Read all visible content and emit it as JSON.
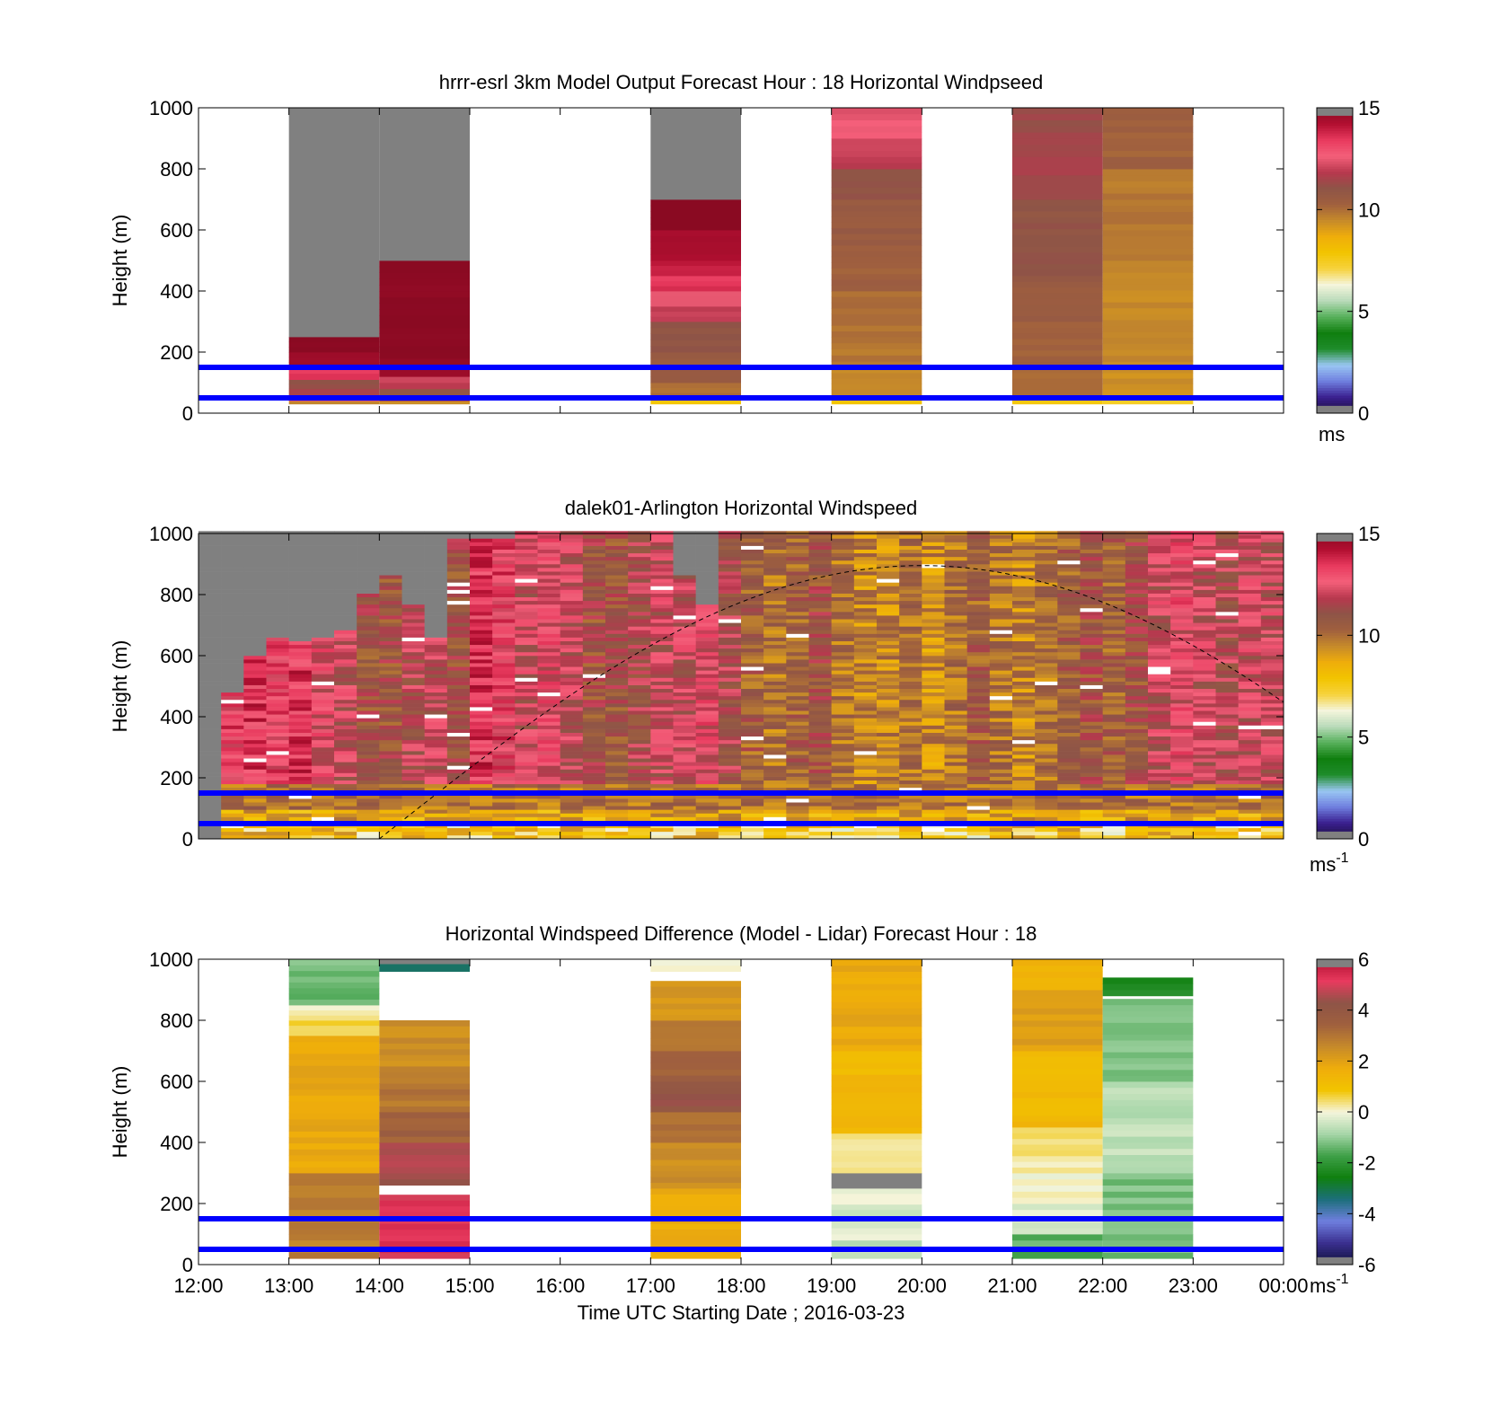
{
  "colors": {
    "ref_line": "#0000ff",
    "axis": "#000000",
    "missing": "#808080",
    "background": "#ffffff",
    "speed_colormap": [
      "#707070",
      "#1a0f3a",
      "#3a1f8f",
      "#6f7fdf",
      "#9ac7f2",
      "#1f8c2b",
      "#0f7f0f",
      "#57b05b",
      "#b9dbba",
      "#f5f5dc",
      "#f6d23c",
      "#f2c400",
      "#efad0b",
      "#c68a2a",
      "#a0603e",
      "#8e5447",
      "#b8384e",
      "#f4607a",
      "#e83a5e",
      "#b20f31",
      "#8a0a22",
      "#707070"
    ],
    "diff_colormap": [
      "#707070",
      "#10103a",
      "#3a2f8f",
      "#6f7fdf",
      "#1c6f7a",
      "#0f7f0f",
      "#3fa048",
      "#a7d6a9",
      "#f5f5dc",
      "#f2c400",
      "#efad0b",
      "#c68a2a",
      "#a0603e",
      "#8e5447",
      "#e83a5e",
      "#b20f31",
      "#707070"
    ]
  },
  "chart_data": [
    {
      "type": "heatmap",
      "title": "hrrr-esrl 3km Model Output   Forecast Hour : 18 Horizontal Windpseed",
      "xlabel": "",
      "ylabel": "Height (m)",
      "ylim": [
        0,
        1000
      ],
      "yticks": [
        "0",
        "200",
        "400",
        "600",
        "800",
        "1000"
      ],
      "xlim": [
        "12:00",
        "00:00"
      ],
      "reference_lines_m": [
        50,
        150
      ],
      "colorbar": {
        "ticks": [
          "0",
          "5",
          "10",
          "15"
        ],
        "range": [
          0,
          15
        ],
        "unit": "ms"
      },
      "columns": [
        {
          "start": "13:00",
          "end": "14:00",
          "bands": [
            [
              30,
              40,
              9.5
            ],
            [
              40,
              60,
              12.5
            ],
            [
              60,
              80,
              11.5
            ],
            [
              80,
              110,
              11
            ],
            [
              110,
              150,
              13.5
            ],
            [
              150,
              200,
              14.5
            ],
            [
              200,
              250,
              15
            ],
            [
              250,
              1000,
              "missing"
            ]
          ]
        },
        {
          "start": "14:00",
          "end": "15:00",
          "bands": [
            [
              30,
              40,
              9.5
            ],
            [
              40,
              60,
              11.5
            ],
            [
              60,
              80,
              11
            ],
            [
              80,
              120,
              12
            ],
            [
              120,
              160,
              14.5
            ],
            [
              160,
              500,
              15
            ],
            [
              500,
              1000,
              "missing"
            ]
          ]
        },
        {
          "start": "17:00",
          "end": "18:00",
          "bands": [
            [
              30,
              50,
              7.8
            ],
            [
              50,
              100,
              10
            ],
            [
              100,
              200,
              10.5
            ],
            [
              200,
              300,
              11
            ],
            [
              300,
              350,
              12
            ],
            [
              350,
              400,
              12.5
            ],
            [
              400,
              450,
              13.5
            ],
            [
              450,
              500,
              14
            ],
            [
              500,
              600,
              14.5
            ],
            [
              600,
              700,
              15
            ],
            [
              700,
              1000,
              "missing"
            ]
          ]
        },
        {
          "start": "19:00",
          "end": "20:00",
          "bands": [
            [
              30,
              60,
              7.8
            ],
            [
              60,
              150,
              9.5
            ],
            [
              150,
              250,
              9.8
            ],
            [
              250,
              400,
              10
            ],
            [
              400,
              550,
              10.3
            ],
            [
              550,
              700,
              10.6
            ],
            [
              700,
              800,
              11
            ],
            [
              800,
              900,
              12
            ],
            [
              900,
              1000,
              12.5
            ]
          ]
        },
        {
          "start": "21:00",
          "end": "22:00",
          "bands": [
            [
              30,
              60,
              7.8
            ],
            [
              60,
              150,
              10
            ],
            [
              150,
              300,
              10.3
            ],
            [
              300,
              450,
              10.6
            ],
            [
              450,
              700,
              11
            ],
            [
              700,
              900,
              11.5
            ],
            [
              900,
              1000,
              11.3
            ]
          ]
        },
        {
          "start": "22:00",
          "end": "23:00",
          "bands": [
            [
              30,
              60,
              7.2
            ],
            [
              60,
              150,
              9.3
            ],
            [
              150,
              500,
              9.5
            ],
            [
              500,
              800,
              9.8
            ],
            [
              800,
              1000,
              10.3
            ]
          ]
        }
      ]
    },
    {
      "type": "heatmap",
      "title": "dalek01-Arlington  Horizontal Windspeed",
      "xlabel": "",
      "ylabel": "Height (m)",
      "ylim": [
        0,
        1000
      ],
      "yticks": [
        "0",
        "200",
        "400",
        "600",
        "800",
        "1000"
      ],
      "xlim": [
        "12:00",
        "00:00"
      ],
      "reference_lines_m": [
        50,
        150
      ],
      "colorbar": {
        "ticks": [
          "0",
          "5",
          "10",
          "15"
        ],
        "range": [
          0,
          15
        ],
        "unit": "ms-1"
      },
      "solar_elevation_curve": {
        "peak_time": "20:00",
        "peak_height_m": 895,
        "zero_time": "14:00",
        "end_height_m": 490
      },
      "profile_interval_min": 15,
      "top_valid_height_m": [
        0,
        470,
        590,
        660,
        640,
        650,
        680,
        800,
        860,
        760,
        650,
        980,
        980,
        980,
        1000,
        1000,
        1000,
        1000,
        1000,
        1000,
        1000,
        860,
        760,
        1000,
        1000,
        1000,
        1000,
        1000,
        1000,
        1000,
        1000,
        1000,
        1000,
        1000,
        1000,
        1000,
        1000,
        1000,
        1000,
        1000,
        1000,
        1000,
        1000,
        1000,
        1000,
        1000,
        1000,
        1000
      ],
      "profile_mean_speed_ms": [
        12,
        13,
        13.5,
        13,
        13.5,
        12.5,
        12,
        11,
        11,
        11.5,
        12,
        11,
        13.5,
        13,
        12,
        12.5,
        12,
        11,
        11,
        11.5,
        12,
        12,
        12.5,
        11.5,
        10.5,
        10,
        10.5,
        11,
        10,
        9.5,
        9.5,
        10,
        9.3,
        10,
        10.5,
        10,
        9.5,
        10,
        10.5,
        11,
        10.5,
        11,
        12,
        12.5,
        12,
        11.5,
        12,
        12
      ]
    },
    {
      "type": "heatmap",
      "title": "Horizontal Windspeed Difference (Model - Lidar) Forecast Hour : 18",
      "xlabel": "Time UTC  Starting Date ; 2016-03-23",
      "ylabel": "Height (m)",
      "ylim": [
        0,
        1000
      ],
      "yticks": [
        "0",
        "200",
        "400",
        "600",
        "800",
        "1000"
      ],
      "xticks": [
        "12:00",
        "13:00",
        "14:00",
        "15:00",
        "16:00",
        "17:00",
        "18:00",
        "19:00",
        "20:00",
        "21:00",
        "22:00",
        "23:00",
        "00:00"
      ],
      "reference_lines_m": [
        50,
        150
      ],
      "colorbar": {
        "ticks": [
          "-6",
          "-4",
          "-2",
          "0",
          "2",
          "4",
          "6"
        ],
        "range": [
          -6,
          6
        ],
        "unit": "ms-1"
      },
      "columns": [
        {
          "start": "13:00",
          "end": "14:00",
          "bands": [
            [
              20,
              300,
              2.8
            ],
            [
              300,
              750,
              1.8
            ],
            [
              750,
              800,
              0.5
            ],
            [
              800,
              850,
              0.1
            ],
            [
              850,
              1000,
              -1.3
            ]
          ]
        },
        {
          "start": "14:00",
          "end": "15:00",
          "bands": [
            [
              20,
              230,
              5.2
            ],
            [
              230,
              260,
              "gap"
            ],
            [
              260,
              400,
              4.5
            ],
            [
              400,
              500,
              3.5
            ],
            [
              500,
              650,
              3
            ],
            [
              650,
              800,
              2.5
            ],
            [
              960,
              985,
              -3.5
            ],
            [
              985,
              1000,
              "missing"
            ]
          ]
        },
        {
          "start": "17:00",
          "end": "18:00",
          "bands": [
            [
              20,
              250,
              1.7
            ],
            [
              250,
              400,
              2.5
            ],
            [
              400,
              500,
              3.2
            ],
            [
              500,
              600,
              4.2
            ],
            [
              600,
              700,
              3.5
            ],
            [
              700,
              800,
              3
            ],
            [
              800,
              930,
              2.2
            ],
            [
              930,
              960,
              "gap"
            ],
            [
              960,
              1000,
              0.2
            ]
          ]
        },
        {
          "start": "19:00",
          "end": "20:00",
          "bands": [
            [
              20,
              80,
              -0.6
            ],
            [
              80,
              180,
              -0.3
            ],
            [
              180,
              250,
              -0.2
            ],
            [
              250,
              300,
              "missing"
            ],
            [
              300,
              430,
              0.3
            ],
            [
              430,
              700,
              1.3
            ],
            [
              700,
              1000,
              1.8
            ]
          ]
        },
        {
          "start": "21:00",
          "end": "22:00",
          "bands": [
            [
              20,
              100,
              -1.5
            ],
            [
              100,
              200,
              -0.3
            ],
            [
              200,
              300,
              0.1
            ],
            [
              300,
              450,
              0.3
            ],
            [
              450,
              700,
              1.3
            ],
            [
              700,
              900,
              2
            ],
            [
              900,
              1000,
              1.6
            ]
          ]
        },
        {
          "start": "22:00",
          "end": "23:00",
          "bands": [
            [
              20,
              300,
              -1.2
            ],
            [
              300,
              600,
              -0.6
            ],
            [
              600,
              870,
              -1.2
            ],
            [
              880,
              940,
              -2.3
            ]
          ]
        }
      ]
    }
  ]
}
